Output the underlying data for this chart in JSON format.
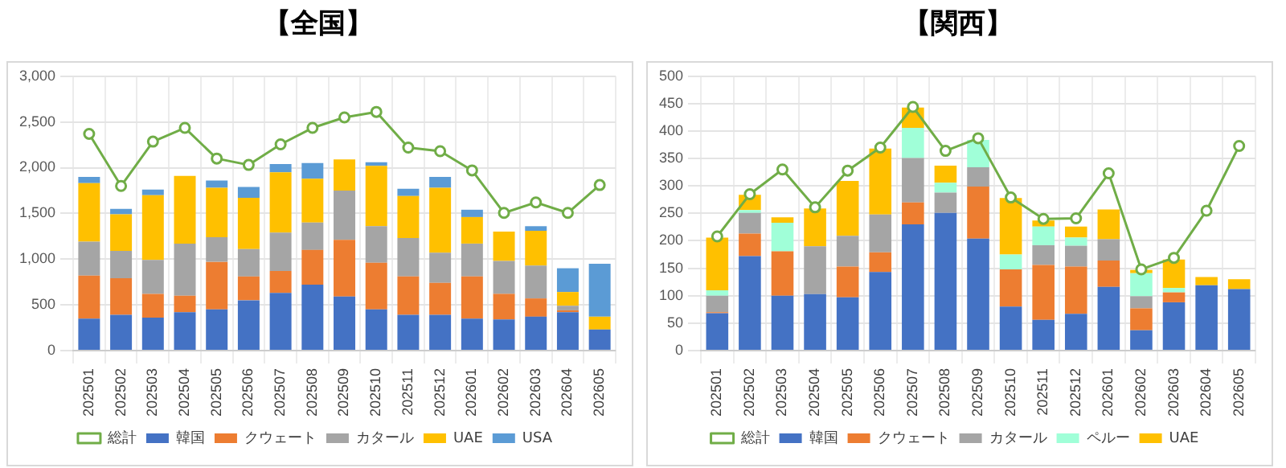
{
  "chart_data": [
    {
      "type": "bar",
      "title": "【全国】",
      "stacked": true,
      "legend": "bottom",
      "grid": true,
      "categories": [
        "202501",
        "202502",
        "202503",
        "202504",
        "202505",
        "202506",
        "202507",
        "202508",
        "202509",
        "202510",
        "202511",
        "202512",
        "202601",
        "202602",
        "202603",
        "202604",
        "202605"
      ],
      "ylim": [
        0,
        3000
      ],
      "yticks": [
        0,
        {
          "value": 500,
          "label": "500"
        },
        {
          "value": 1000,
          "label": "1,000"
        },
        {
          "value": 1500,
          "label": "1,500"
        },
        {
          "value": 2000,
          "label": "2,000"
        },
        {
          "value": 2500,
          "label": "2,500"
        },
        {
          "value": 3000,
          "label": "3,000"
        }
      ],
      "series": [
        {
          "name": "韓国",
          "color": "#4472c4",
          "values": [
            350,
            390,
            360,
            420,
            450,
            550,
            630,
            720,
            590,
            450,
            390,
            390,
            350,
            340,
            370,
            420,
            230
          ]
        },
        {
          "name": "クウェート",
          "color": "#ed7d31",
          "values": [
            470,
            400,
            260,
            180,
            520,
            260,
            240,
            380,
            620,
            510,
            420,
            350,
            460,
            280,
            200,
            20,
            0
          ]
        },
        {
          "name": "カタール",
          "color": "#a5a5a5",
          "values": [
            370,
            300,
            370,
            570,
            270,
            300,
            420,
            300,
            540,
            400,
            420,
            330,
            360,
            360,
            360,
            50,
            0
          ]
        },
        {
          "name": "UAE",
          "color": "#ffc000",
          "values": [
            640,
            400,
            710,
            740,
            540,
            560,
            660,
            480,
            340,
            660,
            460,
            710,
            290,
            320,
            380,
            150,
            140
          ]
        },
        {
          "name": "USA",
          "color": "#5b9bd5",
          "values": [
            70,
            60,
            60,
            0,
            80,
            120,
            90,
            170,
            0,
            40,
            80,
            120,
            80,
            0,
            50,
            260,
            580
          ]
        },
        {
          "name": "総計",
          "type": "line",
          "marker": "circle",
          "color": "#70ad47",
          "values": [
            2370,
            1800,
            2285,
            2435,
            2100,
            2030,
            2255,
            2435,
            2550,
            2610,
            2220,
            2180,
            1970,
            1505,
            1620,
            1505,
            1810
          ]
        }
      ]
    },
    {
      "type": "bar",
      "title": "【関西】",
      "stacked": true,
      "legend": "bottom",
      "grid": true,
      "categories": [
        "202501",
        "202502",
        "202503",
        "202504",
        "202505",
        "202506",
        "202507",
        "202508",
        "202509",
        "202510",
        "202511",
        "202512",
        "202601",
        "202602",
        "202603",
        "202604",
        "202605"
      ],
      "ylim": [
        0,
        500
      ],
      "yticks": [
        0,
        50,
        100,
        150,
        200,
        250,
        300,
        350,
        400,
        450,
        500
      ],
      "series": [
        {
          "name": "韓国",
          "color": "#4472c4",
          "values": [
            68,
            172,
            100,
            103,
            97,
            143,
            230,
            251,
            204,
            80,
            56,
            67,
            116,
            37,
            88,
            119,
            112
          ]
        },
        {
          "name": "クウェート",
          "color": "#ed7d31",
          "values": [
            2,
            41,
            81,
            0,
            56,
            36,
            40,
            0,
            95,
            68,
            100,
            86,
            48,
            40,
            18,
            0,
            0
          ]
        },
        {
          "name": "カタール",
          "color": "#a5a5a5",
          "values": [
            30,
            38,
            null,
            87,
            56,
            69,
            81,
            37,
            35,
            0,
            36,
            38,
            39,
            22,
            null,
            0,
            0
          ]
        },
        {
          "name": "ペルー",
          "color": "#a0ffd8",
          "values": [
            10,
            5,
            52,
            0,
            0,
            0,
            55,
            18,
            50,
            27,
            34,
            15,
            0,
            42,
            8,
            0,
            0
          ]
        },
        {
          "name": "UAE",
          "color": "#ffc000",
          "values": [
            96,
            28,
            10,
            69,
            100,
            120,
            37,
            31,
            0,
            103,
            11,
            20,
            54,
            6,
            52,
            15,
            18
          ]
        },
        {
          "name": "総計",
          "type": "line",
          "marker": "circle",
          "color": "#70ad47",
          "values": [
            208,
            285,
            330,
            261,
            328,
            370,
            444,
            364,
            387,
            279,
            240,
            241,
            323,
            148,
            169,
            255,
            373
          ]
        }
      ]
    }
  ]
}
